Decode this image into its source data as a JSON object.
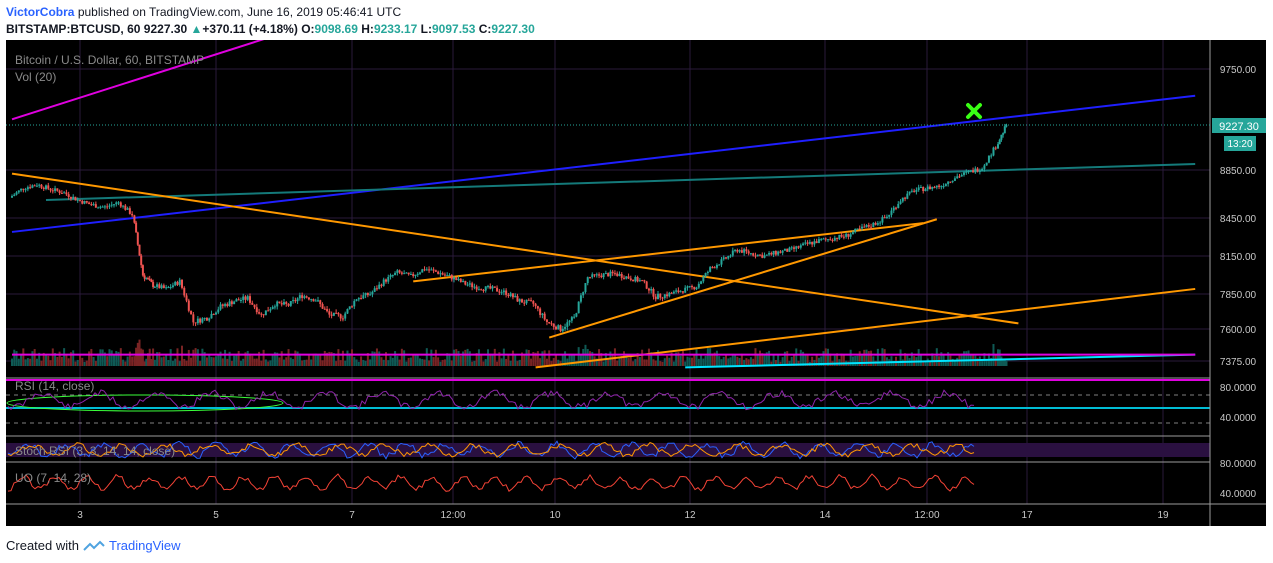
{
  "header": {
    "author": "VictorCobra",
    "published": "published on TradingView.com, June 16, 2019 05:46:41 UTC",
    "symbol": "BITSTAMP:BTCUSD, 60",
    "last": "9227.30",
    "change": "+370.11 (+4.18%)",
    "o_label": "O:",
    "o": "9098.69",
    "h_label": "H:",
    "h": "9233.17",
    "l_label": "L:",
    "l": "9097.53",
    "c_label": "C:",
    "c": "9227.30"
  },
  "panes": {
    "title": "Bitcoin / U.S. Dollar, 60, BITSTAMP",
    "vol": "Vol (20)",
    "rsi": "RSI (14, close)",
    "stoch": "Stoch RSI (3, 3, 14, 14, close)",
    "uo": "UO (7, 14, 28)"
  },
  "price_badge": {
    "price": "9227.30",
    "countdown": "13:20"
  },
  "chart_data": {
    "type": "candlestick",
    "price_axis": {
      "ticks": [
        9750,
        9227.3,
        8850,
        8450,
        8150,
        7850,
        7600,
        7375
      ],
      "labels": [
        "9750.00",
        "9227.30",
        "8850.00",
        "8450.00",
        "8150.00",
        "7850.00",
        "7600.00",
        "7375.00"
      ]
    },
    "rsi_axis": {
      "ticks": [
        "80.0000",
        "40.0000"
      ],
      "levels": [
        80,
        70,
        50,
        30
      ]
    },
    "stoch_axis": {
      "ticks": [
        "80.0000"
      ]
    },
    "uo_axis": {
      "ticks": [
        "40.0000"
      ]
    },
    "x_axis": {
      "ticks": [
        "3",
        "5",
        "7",
        "12:00",
        "10",
        "12",
        "14",
        "12:00",
        "17",
        "19"
      ]
    },
    "series": [
      {
        "name": "BTCUSD",
        "points": [
          [
            2,
            8620
          ],
          [
            2.2,
            8700
          ],
          [
            2.4,
            8730
          ],
          [
            2.6,
            8690
          ],
          [
            2.8,
            8660
          ],
          [
            3,
            8600
          ],
          [
            3.2,
            8560
          ],
          [
            3.4,
            8540
          ],
          [
            3.6,
            8580
          ],
          [
            3.8,
            8480
          ],
          [
            3.95,
            8000
          ],
          [
            4.1,
            7920
          ],
          [
            4.3,
            7890
          ],
          [
            4.5,
            7950
          ],
          [
            4.7,
            7650
          ],
          [
            4.9,
            7680
          ],
          [
            5.1,
            7760
          ],
          [
            5.3,
            7800
          ],
          [
            5.5,
            7820
          ],
          [
            5.7,
            7700
          ],
          [
            5.9,
            7780
          ],
          [
            6.1,
            7770
          ],
          [
            6.3,
            7840
          ],
          [
            6.5,
            7810
          ],
          [
            6.7,
            7700
          ],
          [
            6.9,
            7690
          ],
          [
            7.1,
            7820
          ],
          [
            7.3,
            7850
          ],
          [
            7.5,
            7950
          ],
          [
            7.7,
            8020
          ],
          [
            7.9,
            7990
          ],
          [
            8.1,
            8050
          ],
          [
            8.3,
            8020
          ],
          [
            8.5,
            7980
          ],
          [
            8.7,
            7930
          ],
          [
            8.9,
            7900
          ],
          [
            9.1,
            7890
          ],
          [
            9.3,
            7860
          ],
          [
            9.5,
            7800
          ],
          [
            9.7,
            7780
          ],
          [
            9.9,
            7650
          ],
          [
            10.1,
            7600
          ],
          [
            10.3,
            7680
          ],
          [
            10.5,
            7980
          ],
          [
            10.7,
            8000
          ],
          [
            10.9,
            8010
          ],
          [
            11.1,
            7980
          ],
          [
            11.3,
            7950
          ],
          [
            11.5,
            7830
          ],
          [
            11.7,
            7850
          ],
          [
            11.9,
            7880
          ],
          [
            12.1,
            7910
          ],
          [
            12.3,
            8050
          ],
          [
            12.5,
            8120
          ],
          [
            12.7,
            8200
          ],
          [
            12.9,
            8170
          ],
          [
            13.1,
            8150
          ],
          [
            13.3,
            8180
          ],
          [
            13.5,
            8200
          ],
          [
            13.7,
            8240
          ],
          [
            13.9,
            8270
          ],
          [
            14.1,
            8290
          ],
          [
            14.3,
            8310
          ],
          [
            14.5,
            8360
          ],
          [
            14.7,
            8400
          ],
          [
            14.9,
            8460
          ],
          [
            15.1,
            8600
          ],
          [
            15.3,
            8680
          ],
          [
            15.5,
            8700
          ],
          [
            15.7,
            8720
          ],
          [
            15.9,
            8790
          ],
          [
            16.1,
            8830
          ],
          [
            16.3,
            8870
          ],
          [
            16.5,
            9050
          ],
          [
            16.65,
            9227.3
          ]
        ]
      }
    ],
    "trendlines": [
      {
        "color": "#e000e0",
        "from": [
          2,
          9280
        ],
        "to": [
          6.3,
          10150
        ]
      },
      {
        "color": "#1f1fff",
        "from": [
          2,
          8340
        ],
        "to": [
          19.4,
          9500
        ]
      },
      {
        "color": "#147a7a",
        "from": [
          2.5,
          8600
        ],
        "to": [
          19.4,
          8900
        ]
      },
      {
        "color": "#ff9800",
        "from": [
          2,
          8820
        ],
        "to": [
          16.8,
          7640
        ]
      },
      {
        "color": "#ff9800",
        "from": [
          7.9,
          7950
        ],
        "to": [
          15.4,
          8410
        ]
      },
      {
        "color": "#ff9800",
        "from": [
          9.9,
          7540
        ],
        "to": [
          15.6,
          8440
        ]
      },
      {
        "color": "#ff9800",
        "from": [
          9.7,
          7330
        ],
        "to": [
          19.4,
          7890
        ]
      },
      {
        "color": "#00e5ff",
        "from": [
          11.9,
          7330
        ],
        "to": [
          19.4,
          7420
        ]
      },
      {
        "color": "#e000e0",
        "from": [
          2,
          7420
        ],
        "to": [
          19.4,
          7420
        ]
      }
    ]
  }
}
